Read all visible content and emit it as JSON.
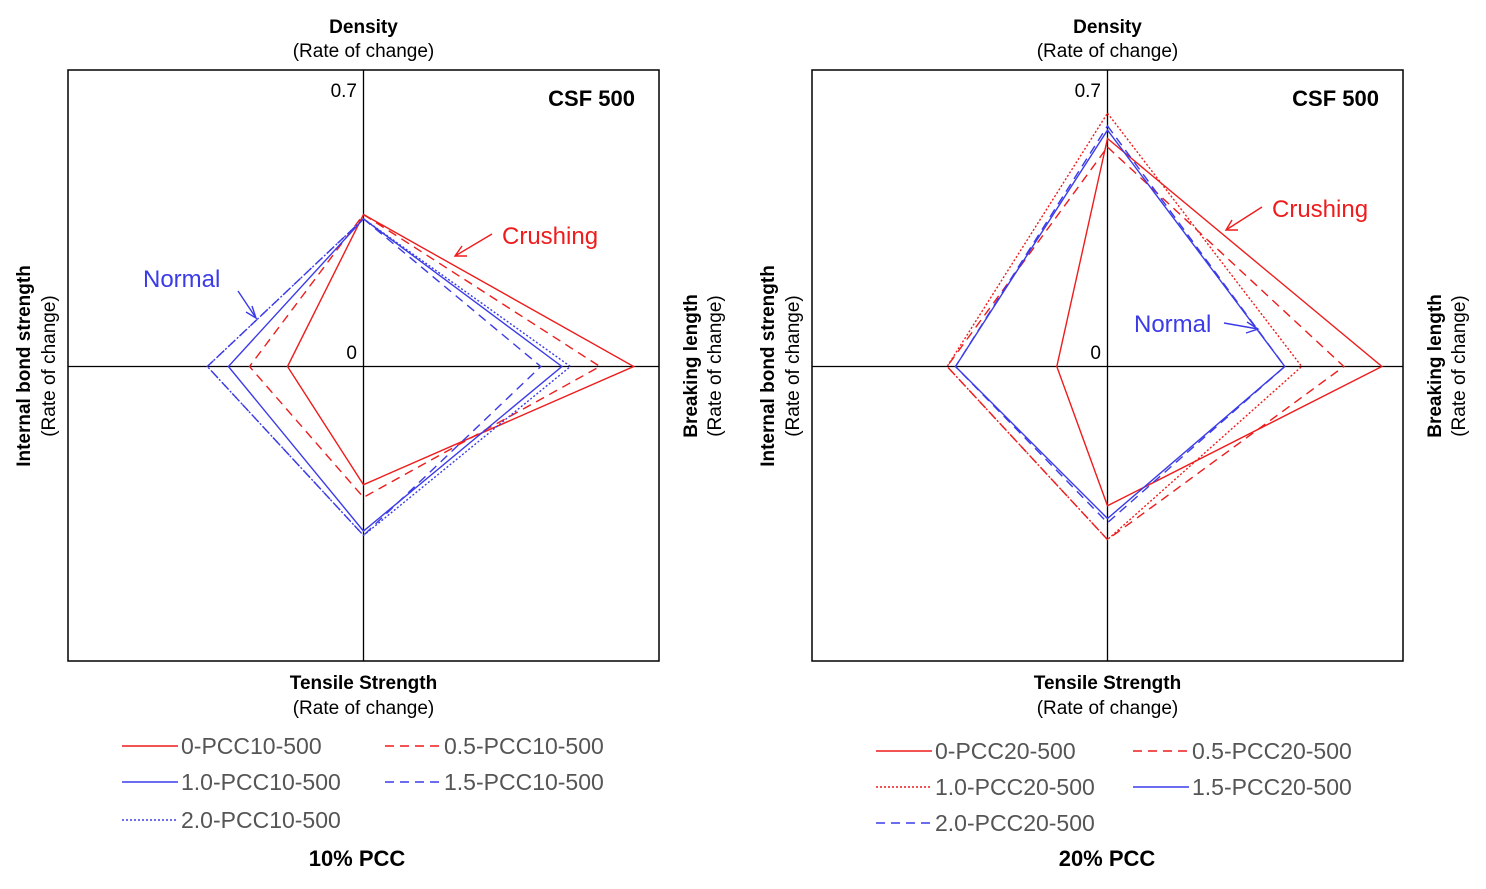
{
  "colors": {
    "red": "#ee1c1c",
    "blue": "#3b3be8",
    "axis": "#000000"
  },
  "chart_data": [
    {
      "type": "radar",
      "axes": [
        {
          "title": "Density",
          "subtitle": "(Rate of change)"
        },
        {
          "title": "Breaking length",
          "subtitle": "(Rate of change)"
        },
        {
          "title": "Tensile Strength",
          "subtitle": "(Rate of change)"
        },
        {
          "title": "Internal bond strength",
          "subtitle": "(Rate of change)"
        }
      ],
      "range": [
        0,
        0.7
      ],
      "tick_labels": {
        "max": "0.7",
        "zero": "0"
      },
      "corner_label": "CSF 500",
      "caption": "10% PCC",
      "annotations": {
        "crushing": "Crushing",
        "normal": "Normal"
      },
      "series": [
        {
          "name": "0-PCC10-500",
          "color": "red",
          "dash": "solid",
          "values": [
            0.36,
            0.64,
            0.28,
            0.18
          ]
        },
        {
          "name": "0.5-PCC10-500",
          "color": "red",
          "dash": "dashed",
          "values": [
            0.36,
            0.56,
            0.31,
            0.27
          ]
        },
        {
          "name": "1.0-PCC10-500",
          "color": "blue",
          "dash": "solid",
          "values": [
            0.35,
            0.47,
            0.39,
            0.32
          ]
        },
        {
          "name": "1.5-PCC10-500",
          "color": "blue",
          "dash": "dashed",
          "values": [
            0.35,
            0.42,
            0.4,
            0.37
          ]
        },
        {
          "name": "2.0-PCC10-500",
          "color": "blue",
          "dash": "dotted",
          "values": [
            0.35,
            0.49,
            0.4,
            0.37
          ]
        }
      ]
    },
    {
      "type": "radar",
      "axes": [
        {
          "title": "Density",
          "subtitle": "(Rate of change)"
        },
        {
          "title": "Breaking length",
          "subtitle": "(Rate of change)"
        },
        {
          "title": "Tensile Strength",
          "subtitle": "(Rate of change)"
        },
        {
          "title": "Internal bond strength",
          "subtitle": "(Rate of change)"
        }
      ],
      "range": [
        0,
        0.7
      ],
      "tick_labels": {
        "max": "0.7",
        "zero": "0"
      },
      "corner_label": "CSF 500",
      "caption": "20% PCC",
      "annotations": {
        "crushing": "Crushing",
        "normal": "Normal"
      },
      "series": [
        {
          "name": "0-PCC20-500",
          "color": "red",
          "dash": "solid",
          "values": [
            0.54,
            0.65,
            0.33,
            0.12
          ]
        },
        {
          "name": "0.5-PCC20-500",
          "color": "red",
          "dash": "dashed",
          "values": [
            0.52,
            0.56,
            0.41,
            0.38
          ]
        },
        {
          "name": "1.0-PCC20-500",
          "color": "red",
          "dash": "dotted",
          "values": [
            0.6,
            0.46,
            0.41,
            0.38
          ]
        },
        {
          "name": "1.5-PCC20-500",
          "color": "blue",
          "dash": "solid",
          "values": [
            0.56,
            0.42,
            0.36,
            0.36
          ]
        },
        {
          "name": "2.0-PCC20-500",
          "color": "blue",
          "dash": "dashed",
          "values": [
            0.57,
            0.42,
            0.37,
            0.36
          ]
        }
      ]
    }
  ]
}
